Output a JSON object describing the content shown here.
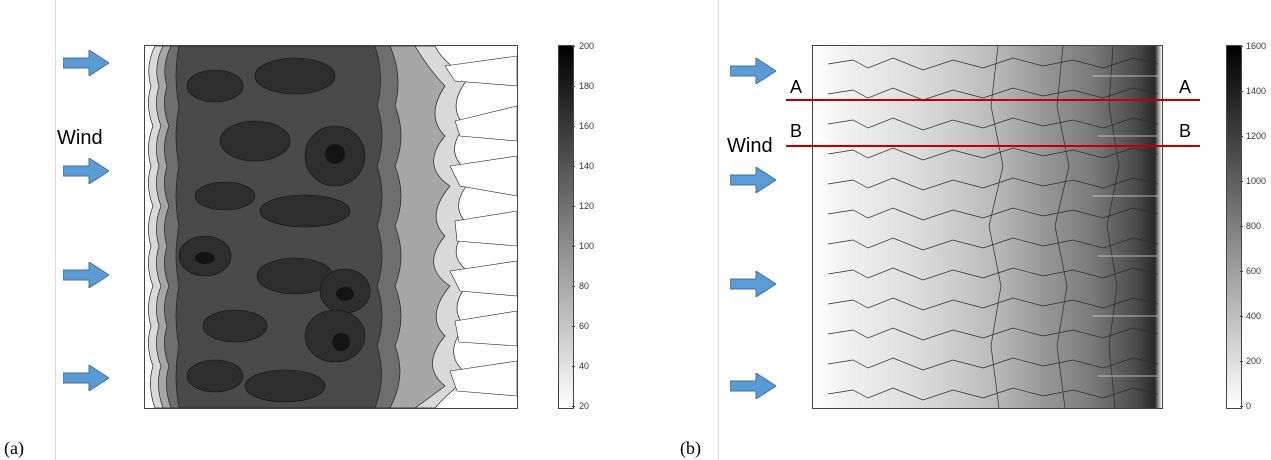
{
  "panels": [
    {
      "id": "a",
      "label": "(a)",
      "side_text": "Wind",
      "colorbar": {
        "min": 20,
        "max": 200,
        "ticks": [
          "200",
          "180",
          "160",
          "140",
          "120",
          "100",
          "80",
          "60",
          "40",
          "20"
        ]
      }
    },
    {
      "id": "b",
      "label": "(b)",
      "side_text": "Wind",
      "section_lines": [
        {
          "left_label": "A",
          "right_label": "A"
        },
        {
          "left_label": "B",
          "right_label": "B"
        }
      ],
      "colorbar": {
        "min": 0,
        "max": 1600,
        "ticks": [
          "1600",
          "1400",
          "1200",
          "1000",
          "800",
          "600",
          "400",
          "200",
          "0"
        ]
      }
    }
  ],
  "colors": {
    "arrow": "#5b9bd5",
    "section_line": "#c00000"
  }
}
